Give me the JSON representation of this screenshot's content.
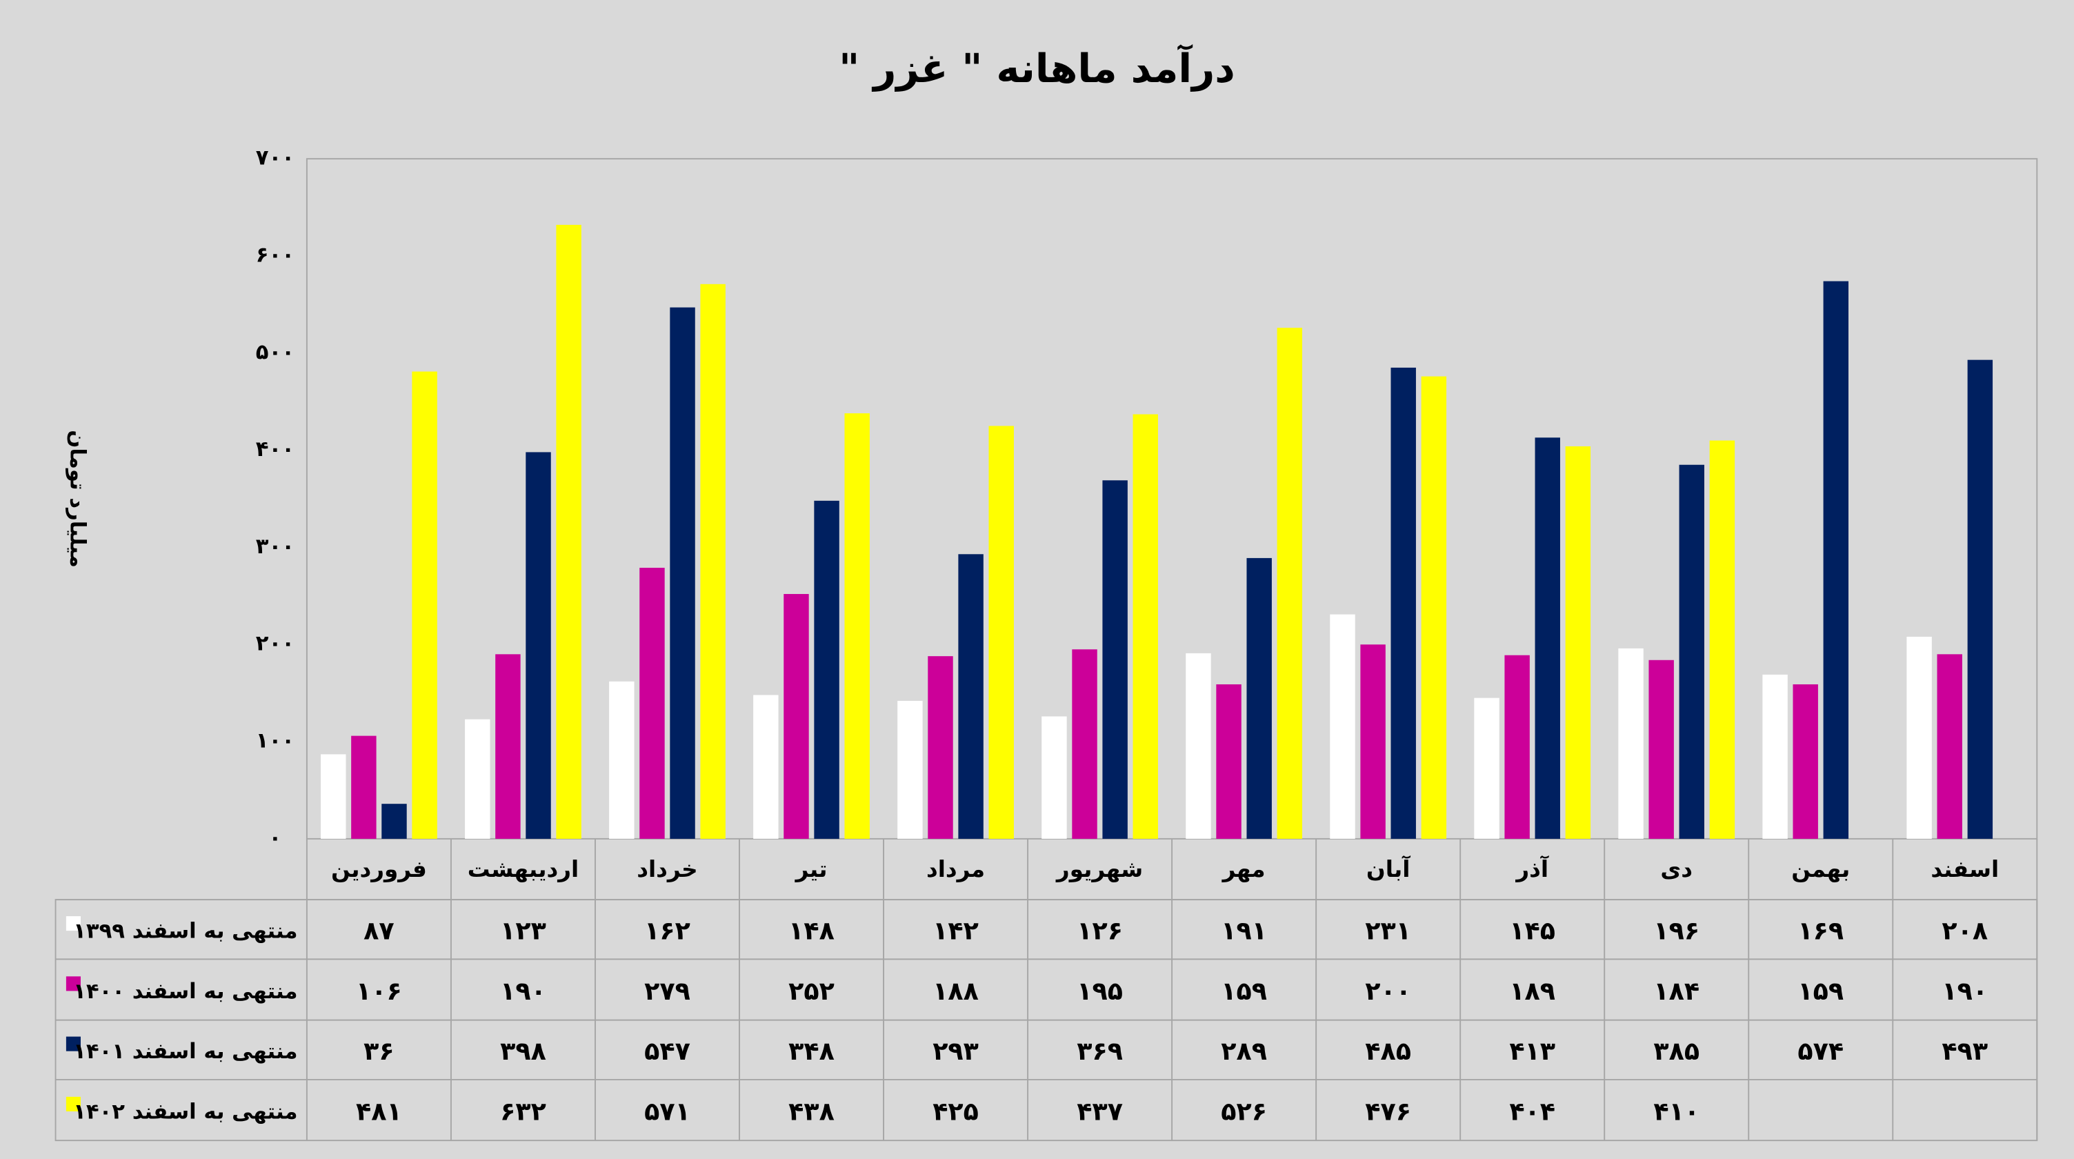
{
  "chart_data": {
    "type": "bar",
    "title": "درآمد ماهانه \" غزر \"",
    "y_label": "میلیارد تومان",
    "categories": [
      "فروردین",
      "اردیبهشت",
      "خرداد",
      "تیر",
      "مرداد",
      "شهریور",
      "مهر",
      "آبان",
      "آذر",
      "دی",
      "بهمن",
      "اسفند"
    ],
    "series": [
      {
        "name": "منتهی به اسفند ۱۳۹۹",
        "color": "#ffffff",
        "values": [
          87,
          123,
          162,
          148,
          142,
          126,
          191,
          231,
          145,
          196,
          169,
          208
        ],
        "value_labels": [
          "۸۷",
          "۱۲۳",
          "۱۶۲",
          "۱۴۸",
          "۱۴۲",
          "۱۲۶",
          "۱۹۱",
          "۲۳۱",
          "۱۴۵",
          "۱۹۶",
          "۱۶۹",
          "۲۰۸"
        ]
      },
      {
        "name": "منتهی به اسفند ۱۴۰۰",
        "color": "#cc0099",
        "values": [
          106,
          190,
          279,
          252,
          188,
          195,
          159,
          200,
          189,
          184,
          159,
          190
        ],
        "value_labels": [
          "۱۰۶",
          "۱۹۰",
          "۲۷۹",
          "۲۵۲",
          "۱۸۸",
          "۱۹۵",
          "۱۵۹",
          "۲۰۰",
          "۱۸۹",
          "۱۸۴",
          "۱۵۹",
          "۱۹۰"
        ]
      },
      {
        "name": "منتهی به اسفند ۱۴۰۱",
        "color": "#002060",
        "values": [
          36,
          398,
          547,
          348,
          293,
          369,
          289,
          485,
          413,
          385,
          574,
          493
        ],
        "value_labels": [
          "۳۶",
          "۳۹۸",
          "۵۴۷",
          "۳۴۸",
          "۲۹۳",
          "۳۶۹",
          "۲۸۹",
          "۴۸۵",
          "۴۱۳",
          "۳۸۵",
          "۵۷۴",
          "۴۹۳"
        ]
      },
      {
        "name": "منتهی به اسفند ۱۴۰۲",
        "color": "#ffff00",
        "values": [
          481,
          632,
          571,
          438,
          425,
          437,
          526,
          476,
          404,
          410,
          null,
          null
        ],
        "value_labels": [
          "۴۸۱",
          "۶۳۲",
          "۵۷۱",
          "۴۳۸",
          "۴۲۵",
          "۴۳۷",
          "۵۲۶",
          "۴۷۶",
          "۴۰۴",
          "۴۱۰",
          null,
          null
        ]
      }
    ],
    "ylim": [
      0,
      700
    ],
    "yticks": [
      {
        "value": 0,
        "label": "۰"
      },
      {
        "value": 100,
        "label": "۱۰۰"
      },
      {
        "value": 200,
        "label": "۲۰۰"
      },
      {
        "value": 300,
        "label": "۳۰۰"
      },
      {
        "value": 400,
        "label": "۴۰۰"
      },
      {
        "value": 500,
        "label": "۵۰۰"
      },
      {
        "value": 600,
        "label": "۶۰۰"
      },
      {
        "value": 700,
        "label": "۷۰۰"
      }
    ],
    "grid": false
  }
}
